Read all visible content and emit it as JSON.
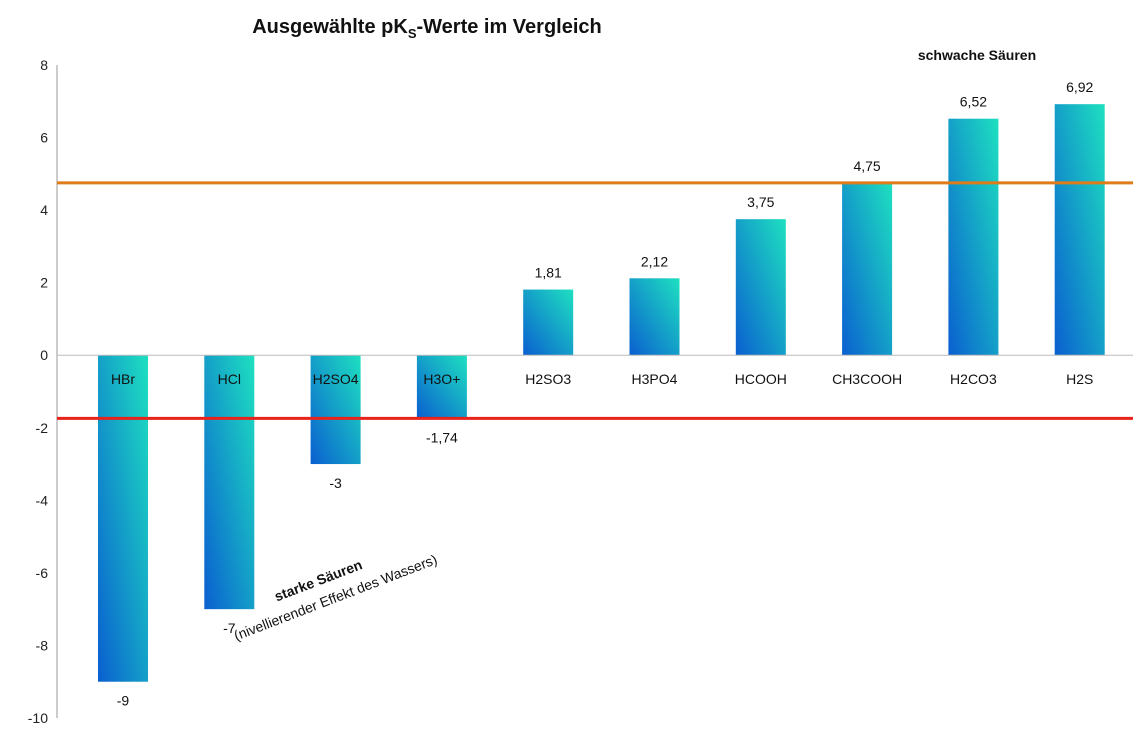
{
  "chart_data": {
    "type": "bar",
    "title_main": "Ausgewählte pK",
    "title_sub": "S",
    "title_end": "-Werte im Vergleich",
    "categories": [
      "HBr",
      "HCl",
      "H2SO4",
      "H3O+",
      "H2SO3",
      "H3PO4",
      "HCOOH",
      "CH3COOH",
      "H2CO3",
      "H2S"
    ],
    "values": [
      -9,
      -7,
      -3,
      -1.74,
      1.81,
      2.12,
      3.75,
      4.75,
      6.52,
      6.92
    ],
    "value_labels": [
      "-9",
      "-7",
      "-3",
      "-1,74",
      "1,81",
      "2,12",
      "3,75",
      "4,75",
      "6,52",
      "6,92"
    ],
    "ylim": [
      -10,
      8
    ],
    "yticks": [
      8,
      6,
      4,
      2,
      0,
      -2,
      -4,
      -6,
      -8,
      -10
    ],
    "reference_lines": [
      {
        "value": 4.75,
        "color": "#e07b1a"
      },
      {
        "value": -1.74,
        "color": "#e8231c"
      }
    ],
    "bar_gradient": [
      "#0a5fd0",
      "#1ee0c0"
    ],
    "annotations": {
      "weak": "schwache Säuren",
      "strong": "starke Säuren",
      "strong_note": "(nivellierender  Effekt des Wassers)"
    }
  }
}
